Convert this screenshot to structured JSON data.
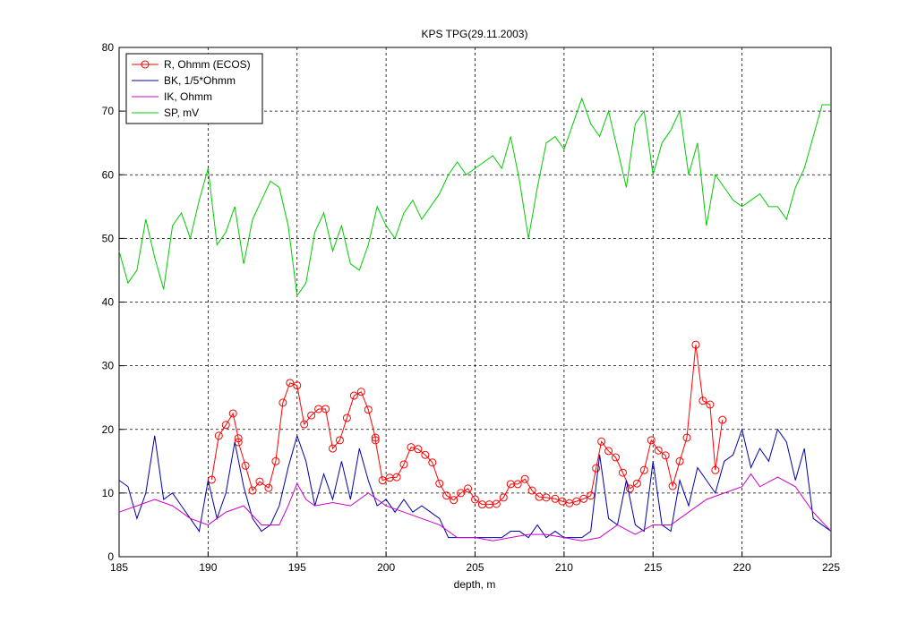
{
  "chart_data": {
    "type": "line",
    "title": "KPS TPG(29.11.2003)",
    "x_label": "depth, m",
    "xlim": [
      185,
      225
    ],
    "xticks": [
      185,
      190,
      195,
      200,
      205,
      210,
      215,
      220,
      225
    ],
    "ylim": [
      0,
      80
    ],
    "yticks": [
      0,
      10,
      20,
      30,
      40,
      50,
      60,
      70,
      80
    ],
    "grid": true,
    "legend": "northwest",
    "series": [
      {
        "name": "R, Ohmm (ECOS)",
        "color": "#ff0000",
        "marker": "circle",
        "x": [
          190.2,
          190.6,
          191.0,
          191.4,
          191.7,
          191.7,
          192.1,
          192.5,
          192.9,
          193.4,
          193.8,
          194.2,
          194.6,
          195.0,
          195.4,
          195.8,
          196.2,
          196.6,
          197.0,
          197.4,
          197.8,
          198.2,
          198.6,
          199.0,
          199.4,
          199.4,
          199.8,
          200.2,
          200.6,
          201.0,
          201.4,
          201.8,
          202.2,
          202.6,
          203.0,
          203.4,
          203.8,
          204.2,
          204.6,
          205.0,
          205.4,
          205.8,
          206.2,
          206.6,
          207.0,
          207.4,
          207.8,
          208.2,
          208.6,
          209.0,
          209.5,
          209.9,
          210.3,
          210.7,
          211.1,
          211.5,
          211.8,
          212.1,
          212.5,
          212.9,
          213.3,
          213.7,
          214.1,
          214.5,
          214.9,
          215.3,
          215.7,
          216.1,
          216.5,
          216.9,
          217.4,
          217.8,
          218.2,
          218.5,
          218.9
        ],
        "values": [
          12.1,
          19.0,
          20.7,
          22.5,
          18.6,
          18.0,
          14.3,
          10.4,
          11.8,
          10.8,
          15.0,
          24.2,
          27.3,
          26.9,
          20.8,
          22.2,
          23.2,
          23.2,
          17.0,
          18.3,
          21.8,
          25.3,
          25.9,
          23.1,
          18.7,
          18.3,
          12.0,
          12.4,
          12.5,
          14.5,
          17.2,
          16.9,
          16.0,
          14.8,
          11.5,
          9.6,
          8.9,
          10.0,
          10.7,
          9.0,
          8.2,
          8.2,
          8.3,
          9.3,
          11.4,
          11.4,
          12.2,
          10.4,
          9.4,
          9.3,
          9.1,
          8.7,
          8.4,
          8.7,
          9.1,
          9.6,
          13.9,
          18.1,
          16.6,
          15.6,
          13.2,
          10.7,
          11.5,
          13.6,
          18.3,
          16.7,
          15.9,
          11.1,
          15.0,
          18.7,
          33.3,
          24.5,
          23.9,
          13.6,
          21.5
        ]
      },
      {
        "name": "BK, 1/5*Ohmm",
        "color": "#0000aa",
        "x": [
          185,
          185.5,
          186,
          186.5,
          187,
          187.5,
          188,
          188.5,
          189,
          189.5,
          190,
          190.5,
          191,
          191.5,
          192,
          192.5,
          193,
          193.5,
          194,
          194.5,
          195,
          195.5,
          196,
          196.5,
          197,
          197.5,
          198,
          198.5,
          199,
          199.5,
          200,
          200.5,
          201,
          201.5,
          202,
          202.5,
          203,
          203.5,
          204,
          204.5,
          205,
          205.5,
          206,
          206.5,
          207,
          207.5,
          208,
          208.5,
          209,
          209.5,
          210,
          210.5,
          211,
          211.5,
          212,
          212.5,
          213,
          213.5,
          214,
          214.5,
          215,
          215.5,
          216,
          216.5,
          217,
          217.5,
          218,
          218.5,
          219,
          219.5,
          220,
          220.5,
          221,
          221.5,
          222,
          222.5,
          223,
          223.5,
          224,
          224.5,
          225
        ],
        "values": [
          12,
          11,
          6,
          10,
          19,
          9,
          10,
          8,
          6,
          4,
          12,
          6,
          10,
          18,
          11,
          6,
          4,
          5,
          8,
          14,
          19,
          15,
          8,
          13,
          9,
          15,
          9,
          17,
          12,
          8,
          9,
          7,
          9,
          7,
          8,
          7,
          6,
          3,
          3,
          3,
          3,
          3,
          3,
          3,
          4,
          4,
          3,
          5,
          3,
          4,
          3,
          3,
          3,
          4,
          16,
          6,
          5,
          12,
          5,
          4,
          15,
          5,
          4,
          12,
          8,
          14,
          12,
          10,
          15,
          16,
          20,
          14,
          17,
          15,
          20,
          18,
          12,
          17,
          6,
          5,
          4
        ]
      },
      {
        "name": "IK, Ohmm",
        "color": "#cc00cc",
        "x": [
          185,
          186,
          187,
          188,
          189,
          190,
          190.5,
          191,
          192,
          193,
          194,
          194.5,
          195,
          195.5,
          196,
          197,
          198,
          199,
          200,
          201,
          202,
          203,
          204,
          205,
          206,
          207,
          208,
          209,
          210,
          211,
          212,
          213,
          214,
          215,
          216,
          217,
          218,
          219,
          220,
          220.5,
          221,
          222,
          223,
          224,
          225
        ],
        "values": [
          7,
          8,
          9,
          8,
          6,
          5,
          6,
          7,
          8,
          5,
          5,
          8,
          11.5,
          9,
          8,
          8.5,
          8,
          10,
          8,
          7,
          6,
          5,
          3,
          3,
          2.5,
          3,
          3.5,
          3.5,
          3,
          2.5,
          3,
          5,
          3.5,
          5,
          5,
          7,
          9,
          10,
          11,
          13,
          11,
          12.5,
          11,
          7,
          4
        ]
      },
      {
        "name": "SP, mV",
        "color": "#00cc00",
        "x": [
          185,
          185.5,
          186,
          186.5,
          187,
          187.5,
          188,
          188.5,
          189,
          189.5,
          190,
          190.5,
          191,
          191.5,
          192,
          192.5,
          193,
          193.5,
          194,
          194.5,
          195,
          195.5,
          196,
          196.5,
          197,
          197.5,
          198,
          198.5,
          199,
          199.5,
          200,
          200.5,
          201,
          201.5,
          202,
          202.5,
          203,
          203.5,
          204,
          204.5,
          205,
          205.5,
          206,
          206.5,
          207,
          207.5,
          208,
          208.5,
          209,
          209.5,
          210,
          210.5,
          211,
          211.5,
          212,
          212.5,
          213,
          213.5,
          214,
          214.5,
          215,
          215.5,
          216,
          216.5,
          217,
          217.5,
          218,
          218.5,
          219,
          219.5,
          220,
          220.5,
          221,
          221.5,
          222,
          222.5,
          223,
          223.5,
          224,
          224.5,
          225
        ],
        "values": [
          48,
          43,
          45,
          53,
          47,
          42,
          52,
          54,
          50,
          56,
          61,
          49,
          51,
          55,
          46,
          53,
          56,
          59,
          58,
          52,
          41,
          43,
          51,
          54,
          48,
          52,
          46,
          45,
          49,
          55,
          52,
          50,
          54,
          56,
          53,
          55,
          57,
          60,
          62,
          60,
          61,
          62,
          63,
          61,
          66,
          59,
          50,
          58,
          65,
          66,
          64,
          68,
          72,
          68,
          66,
          70,
          64,
          58,
          68,
          70,
          60,
          65,
          67,
          70,
          60,
          65,
          52,
          60,
          58,
          56,
          55,
          56,
          57,
          55,
          55,
          53,
          58,
          61,
          66,
          71,
          71
        ]
      }
    ]
  }
}
